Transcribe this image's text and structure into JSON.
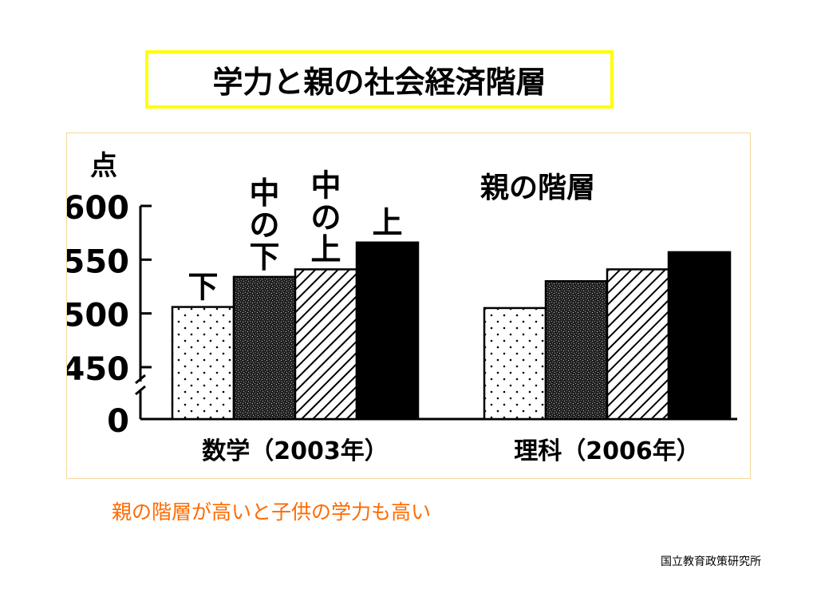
{
  "slide": {
    "title": "学力と親の社会経済階層",
    "conclusion": "親の階層が高いと子供の学力も高い",
    "source": "国立教育政策研究所"
  },
  "colors": {
    "title_border": "#ffff00",
    "conclusion_text": "#ff6a00",
    "chart_frame_border": "#f5d79a"
  },
  "chart_data": {
    "type": "bar",
    "title": "親の階層",
    "ylabel": "点",
    "yticks": [
      "600",
      "550",
      "500",
      "450",
      "0"
    ],
    "ylim": [
      450,
      600
    ],
    "axis_break": true,
    "categories": [
      "数学（2003年）",
      "理科（2006年）"
    ],
    "series": [
      {
        "name": "下",
        "values": [
          506,
          505
        ],
        "pattern": "dots"
      },
      {
        "name": "中の下",
        "values": [
          534,
          530
        ],
        "pattern": "dense-stipple"
      },
      {
        "name": "中の上",
        "values": [
          541,
          541
        ],
        "pattern": "diagonal-hatch"
      },
      {
        "name": "上",
        "values": [
          566,
          557
        ],
        "pattern": "solid-black"
      }
    ],
    "legend": "series labels placed vertically above the first category's bars"
  }
}
